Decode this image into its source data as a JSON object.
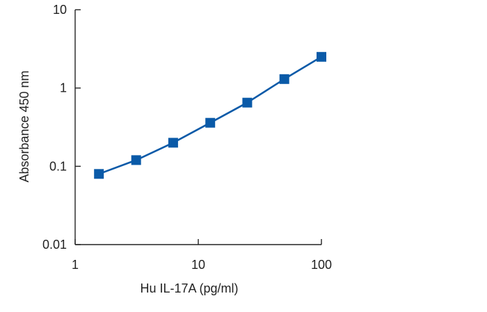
{
  "chart_data": {
    "type": "line",
    "title": "",
    "xlabel": "Hu IL-17A (pg/ml)",
    "ylabel": "Absorbance 450 nm",
    "x_scale": "log",
    "y_scale": "log",
    "xlim": [
      1,
      100
    ],
    "ylim": [
      0.01,
      10
    ],
    "x_ticks": [
      1,
      10,
      100
    ],
    "x_tick_labels": [
      "1",
      "10",
      "100"
    ],
    "y_ticks": [
      0.01,
      0.1,
      1,
      10
    ],
    "y_tick_labels": [
      "0.01",
      "0.1",
      "1",
      "10"
    ],
    "grid": false,
    "legend": "none",
    "series": [
      {
        "x": [
          1.56,
          3.13,
          6.25,
          12.5,
          25,
          50,
          100
        ],
        "y": [
          0.08,
          0.12,
          0.2,
          0.36,
          0.65,
          1.3,
          2.5
        ],
        "marker": "square",
        "color": "#0a5aa8"
      }
    ]
  }
}
